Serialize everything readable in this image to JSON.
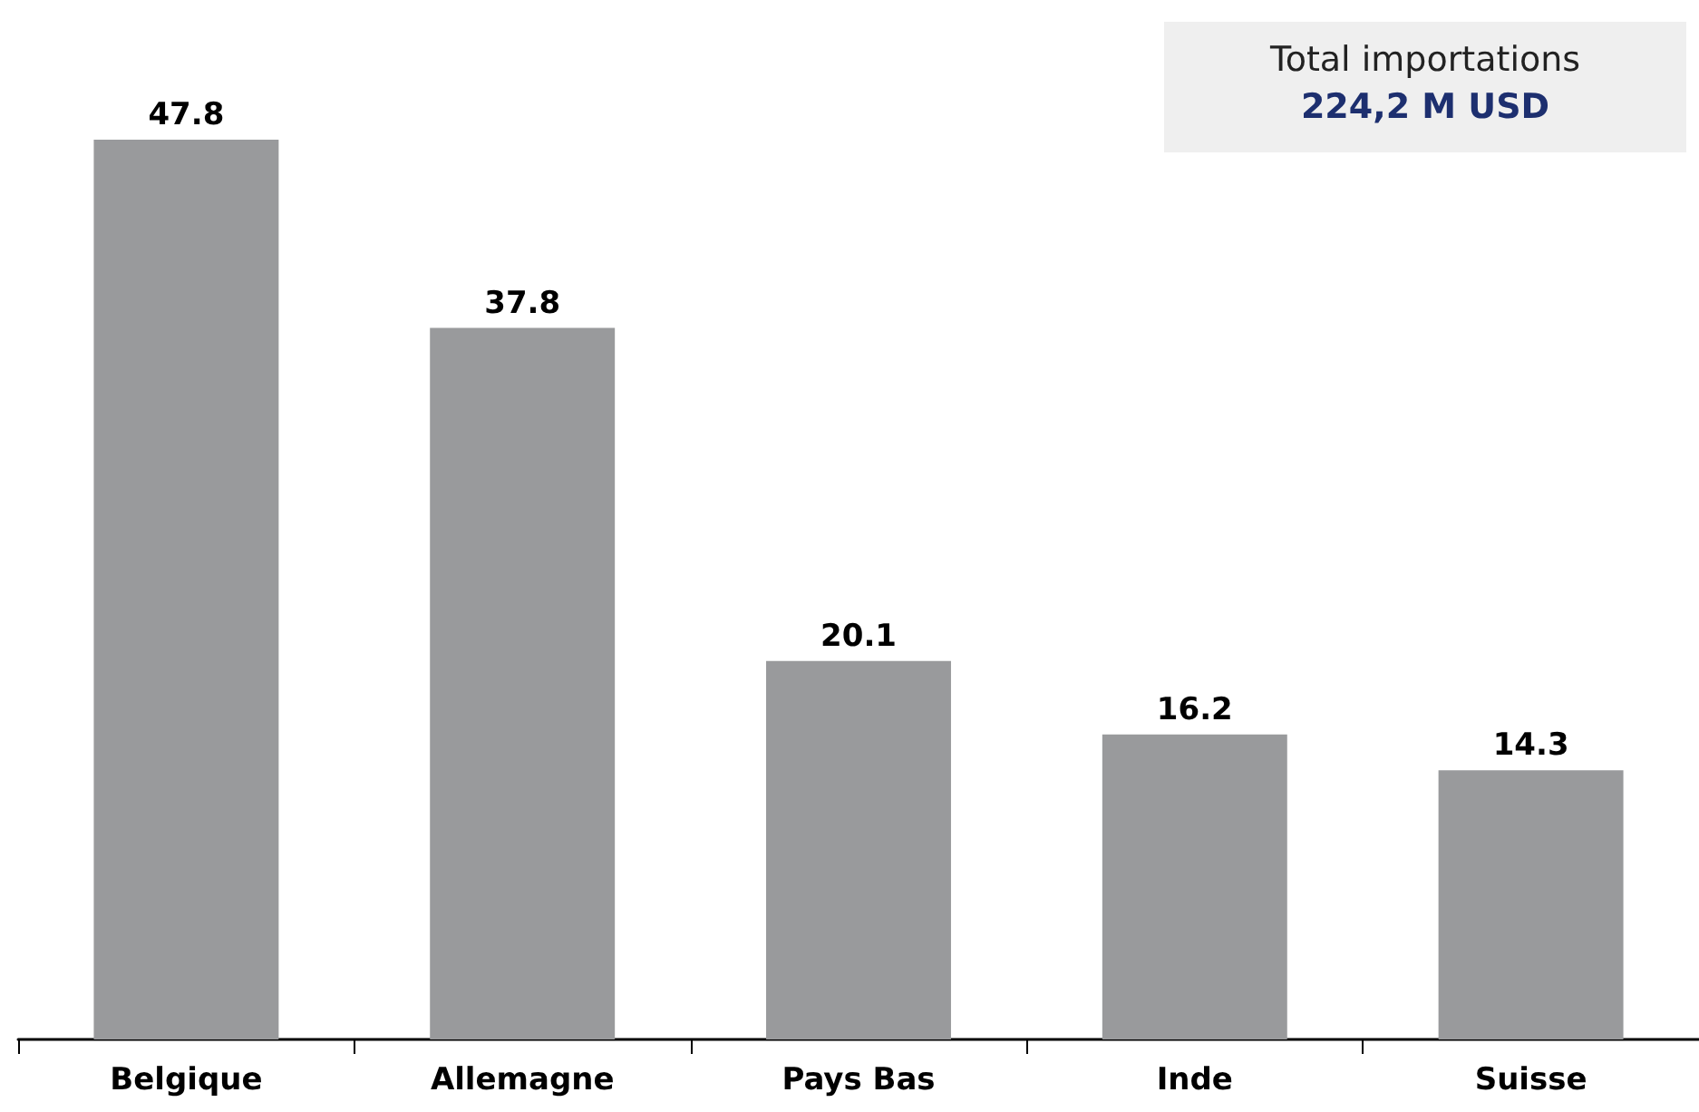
{
  "chart_data": {
    "type": "bar",
    "categories": [
      "Belgique",
      "Allemagne",
      "Pays Bas",
      "Inde",
      "Suisse"
    ],
    "values": [
      47.8,
      37.8,
      20.1,
      16.2,
      14.3
    ],
    "color": "#999a9c",
    "data_labels": true,
    "tick_labels": "x",
    "annotations": [
      "Total importations",
      "224,2 M USD"
    ]
  }
}
